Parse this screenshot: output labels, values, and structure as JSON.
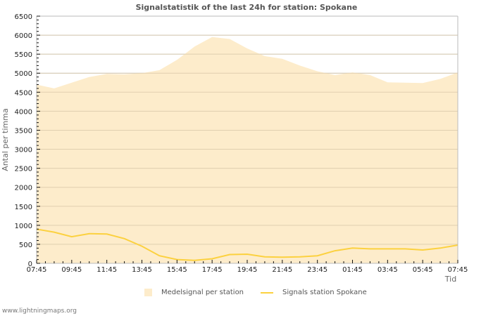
{
  "title": "Signalstatistik of the last 24h for station: Spokane",
  "footer": "www.lightningmaps.org",
  "legend": {
    "area_label": "Medelsignal per station",
    "line_label": "Signals station Spokane"
  },
  "colors": {
    "area": "#fdeccb",
    "line": "#fcd13f",
    "grid": "#cccccc",
    "axis": "#bbbbbb"
  },
  "chart_data": {
    "type": "area",
    "title": "Signalstatistik of the last 24h for station: Spokane",
    "xlabel": "Tid",
    "ylabel": "Antal per timma",
    "ylim": [
      0,
      6500
    ],
    "yticks": [
      0,
      500,
      1000,
      1500,
      2000,
      2500,
      3000,
      3500,
      4000,
      4500,
      5000,
      5500,
      6000,
      6500
    ],
    "xtick_labels": [
      "07:45",
      "09:45",
      "11:45",
      "13:45",
      "15:45",
      "17:45",
      "19:45",
      "21:45",
      "23:45",
      "01:45",
      "03:45",
      "05:45",
      "07:45"
    ],
    "grid": true,
    "legend_position": "bottom",
    "x": [
      "07:45",
      "08:45",
      "09:45",
      "10:45",
      "11:45",
      "12:45",
      "13:45",
      "14:45",
      "15:45",
      "16:45",
      "17:45",
      "18:45",
      "19:45",
      "20:45",
      "21:45",
      "22:45",
      "23:45",
      "00:45",
      "01:45",
      "02:45",
      "03:45",
      "04:45",
      "05:45",
      "06:45",
      "07:45"
    ],
    "series": [
      {
        "name": "Medelsignal per station",
        "type": "area",
        "values": [
          4700,
          4600,
          4750,
          4900,
          4980,
          4970,
          5000,
          5080,
          5350,
          5700,
          5950,
          5900,
          5650,
          5450,
          5380,
          5200,
          5050,
          4950,
          5020,
          4950,
          4760,
          4750,
          4740,
          4850,
          5020
        ]
      },
      {
        "name": "Signals station Spokane",
        "type": "line",
        "values": [
          900,
          820,
          700,
          780,
          770,
          650,
          450,
          200,
          100,
          80,
          120,
          230,
          240,
          170,
          160,
          170,
          200,
          330,
          400,
          380,
          380,
          380,
          350,
          400,
          480
        ]
      }
    ]
  }
}
